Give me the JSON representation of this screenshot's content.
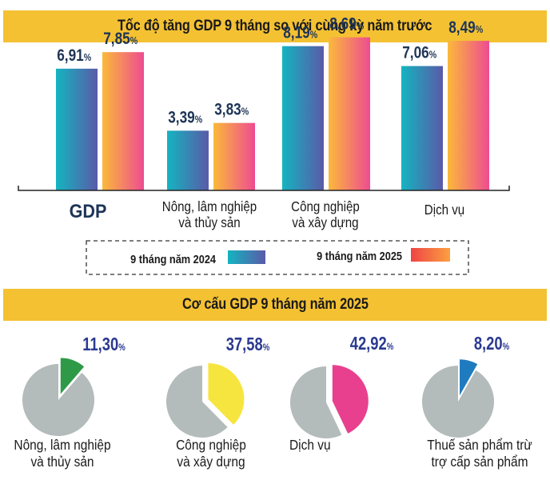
{
  "section1": {
    "title": "Tốc độ tăng GDP 9 tháng so với cùng kỳ năm trước"
  },
  "section2": {
    "title": "Cơ cấu GDP 9 tháng năm 2025"
  },
  "legend": {
    "items": [
      {
        "label": "9 tháng năm 2024"
      },
      {
        "label": "9 tháng năm 2025"
      }
    ]
  },
  "colors": {
    "banner": "#f4c133",
    "series_2024_gradient": [
      "#14b4c0",
      "#5a5aa8"
    ],
    "series_2025_gradient": [
      "#fbb93a",
      "#ee4c91"
    ],
    "legend_2025_gradient": [
      "#ee4444",
      "#fba040"
    ],
    "value_text": "#1e3557",
    "pie_rest": "#b4bbbb",
    "pie_value_text": "#2b3990"
  },
  "chart_data": [
    {
      "type": "bar",
      "title": "Tốc độ tăng GDP 9 tháng so với cùng kỳ năm trước",
      "categories": [
        "GDP",
        "Nông, lâm nghiệp\nvà thủy sản",
        "Công nghiệp\nvà xây dựng",
        "Dịch vụ"
      ],
      "series": [
        {
          "name": "9 tháng năm 2024",
          "values": [
            6.91,
            3.39,
            8.19,
            7.06
          ],
          "labels": [
            "6,91",
            "3,39",
            "8,19",
            "7,06"
          ]
        },
        {
          "name": "9 tháng năm 2025",
          "values": [
            7.85,
            3.83,
            8.69,
            8.49
          ],
          "labels": [
            "7,85",
            "3,83",
            "8,69",
            "8,49"
          ]
        }
      ],
      "unit": "%",
      "xlabel": "",
      "ylabel": "",
      "ylim": [
        0,
        10
      ],
      "grid": false,
      "legend": "bottom"
    },
    {
      "type": "pie",
      "title": "Cơ cấu GDP 9 tháng năm 2025",
      "slices": [
        {
          "label": "Nông, lâm nghiệp\nvà thủy sản",
          "value": 11.3,
          "display": "11,30",
          "color": "#2e9a48"
        },
        {
          "label": "Công nghiệp\nvà xây dựng",
          "value": 37.58,
          "display": "37,58",
          "color": "#f7e53f"
        },
        {
          "label": "Dịch vụ",
          "value": 42.92,
          "display": "42,92",
          "color": "#e8408f"
        },
        {
          "label": "Thuế sản phẩm trừ\ntrợ cấp sản phẩm",
          "value": 8.2,
          "display": "8,20",
          "color": "#1f7bc0"
        }
      ],
      "unit": "%"
    }
  ]
}
